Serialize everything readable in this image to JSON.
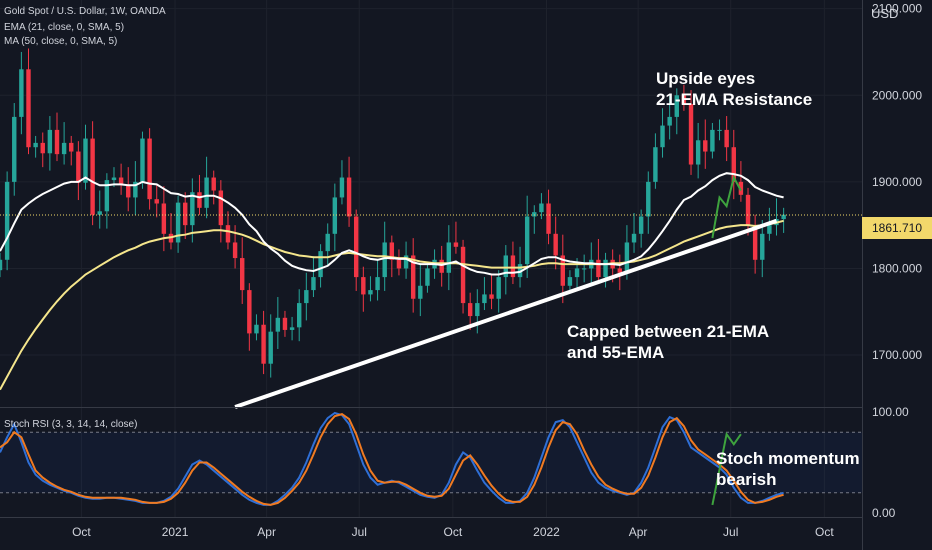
{
  "header": {
    "symbol": "Gold Spot / U.S. Dollar, 1W, OANDA",
    "ema_label": "EMA (21, close, 0, SMA, 5)",
    "ma_label": "MA (50, close, 0, SMA, 5)",
    "stoch_label": "Stoch RSI (3, 3, 14, 14, close)"
  },
  "annotations": {
    "upside_line1": "Upside eyes",
    "upside_line2": "21-EMA Resistance",
    "capped_line1": "Capped between 21-EMA",
    "capped_line2": "and 55-EMA",
    "stoch_line1": "Stoch momentum",
    "stoch_line2": "bearish"
  },
  "price_axis": {
    "unit": "USD",
    "last_price": "1861.710"
  },
  "colors": {
    "background": "#131722",
    "up_candle": "#26a69a",
    "down_candle": "#f23645",
    "ema_line": "#ffffff",
    "ma_line": "#f5e68c",
    "stoch_k": "#2f6fd6",
    "stoch_d": "#f07a21",
    "projection": "#3ea33e",
    "trendline": "#ffffff",
    "last_price_box": "#f2d86b"
  },
  "chart_data": [
    {
      "type": "candlestick",
      "title": "Gold Spot / U.S. Dollar, 1W, OANDA",
      "ylabel": "USD",
      "ylim": [
        1640,
        2110
      ],
      "yticks": [
        1700,
        1800,
        1900,
        2000,
        2100
      ],
      "ytick_labels": [
        "1700.000",
        "1800.000",
        "1900.000",
        "2000.000",
        "2100.000"
      ],
      "x_start": "2020-07-13",
      "x_end": "2022-11-07",
      "xticks": [
        "2020-10-01",
        "2021-01-01",
        "2021-04-01",
        "2021-07-01",
        "2021-10-01",
        "2022-01-01",
        "2022-04-01",
        "2022-07-01",
        "2022-10-01"
      ],
      "xtick_labels": [
        "Oct",
        "2021",
        "Apr",
        "Jul",
        "Oct",
        "2022",
        "Apr",
        "Jul",
        "Oct"
      ],
      "candle_start": "2020-07-13",
      "closes": [
        1810,
        1900,
        1975,
        2030,
        1940,
        1945,
        1933,
        1960,
        1932,
        1945,
        1935,
        1899,
        1950,
        1862,
        1866,
        1902,
        1905,
        1897,
        1882,
        1900,
        1950,
        1880,
        1875,
        1840,
        1830,
        1876,
        1850,
        1888,
        1870,
        1905,
        1890,
        1850,
        1830,
        1812,
        1775,
        1725,
        1735,
        1690,
        1727,
        1743,
        1729,
        1732,
        1760,
        1775,
        1790,
        1820,
        1840,
        1882,
        1905,
        1860,
        1790,
        1770,
        1775,
        1790,
        1830,
        1810,
        1800,
        1815,
        1765,
        1780,
        1800,
        1810,
        1795,
        1830,
        1825,
        1760,
        1745,
        1760,
        1770,
        1765,
        1790,
        1815,
        1790,
        1805,
        1860,
        1865,
        1875,
        1840,
        1815,
        1780,
        1790,
        1800,
        1800,
        1810,
        1790,
        1810,
        1800,
        1795,
        1830,
        1840,
        1860,
        1900,
        1940,
        1965,
        1975,
        2000,
        1990,
        1920,
        1948,
        1935,
        1960,
        1960,
        1940,
        1900,
        1885,
        1850,
        1810,
        1840,
        1850,
        1857,
        1862
      ],
      "ema21": [
        1820,
        1835,
        1852,
        1868,
        1875,
        1881,
        1886,
        1890,
        1894,
        1898,
        1900,
        1900,
        1905,
        1900,
        1896,
        1896,
        1897,
        1897,
        1896,
        1896,
        1900,
        1898,
        1897,
        1892,
        1887,
        1886,
        1883,
        1884,
        1882,
        1884,
        1884,
        1881,
        1876,
        1870,
        1862,
        1851,
        1843,
        1831,
        1823,
        1817,
        1809,
        1803,
        1800,
        1798,
        1797,
        1800,
        1803,
        1810,
        1818,
        1821,
        1818,
        1814,
        1811,
        1810,
        1812,
        1812,
        1811,
        1811,
        1807,
        1805,
        1805,
        1805,
        1804,
        1806,
        1808,
        1803,
        1799,
        1796,
        1795,
        1793,
        1793,
        1795,
        1795,
        1796,
        1801,
        1806,
        1811,
        1813,
        1813,
        1810,
        1808,
        1807,
        1806,
        1806,
        1805,
        1805,
        1805,
        1804,
        1807,
        1810,
        1814,
        1822,
        1832,
        1843,
        1855,
        1868,
        1879,
        1883,
        1890,
        1895,
        1902,
        1907,
        1910,
        1909,
        1907,
        1902,
        1894,
        1890,
        1887,
        1884,
        1882
      ],
      "ma50": [
        1660,
        1675,
        1690,
        1705,
        1718,
        1730,
        1741,
        1752,
        1762,
        1771,
        1779,
        1786,
        1793,
        1798,
        1803,
        1808,
        1813,
        1817,
        1821,
        1824,
        1828,
        1831,
        1833,
        1835,
        1836,
        1838,
        1839,
        1841,
        1842,
        1843,
        1844,
        1844,
        1843,
        1841,
        1839,
        1836,
        1832,
        1828,
        1825,
        1822,
        1819,
        1817,
        1815,
        1814,
        1813,
        1813,
        1813,
        1815,
        1817,
        1818,
        1817,
        1816,
        1815,
        1814,
        1814,
        1813,
        1812,
        1812,
        1810,
        1808,
        1807,
        1806,
        1806,
        1806,
        1806,
        1805,
        1804,
        1803,
        1802,
        1801,
        1801,
        1801,
        1801,
        1801,
        1802,
        1803,
        1805,
        1806,
        1806,
        1805,
        1805,
        1805,
        1805,
        1805,
        1805,
        1805,
        1806,
        1806,
        1807,
        1808,
        1810,
        1812,
        1815,
        1819,
        1823,
        1827,
        1831,
        1834,
        1837,
        1840,
        1843,
        1846,
        1848,
        1849,
        1850,
        1850,
        1849,
        1850,
        1851,
        1853,
        1855
      ],
      "trendline": {
        "from": [
          "2021-03-01",
          1640
        ],
        "to": [
          "2022-08-15",
          1855
        ]
      },
      "projection": [
        [
          "2022-06-13",
          1835
        ],
        [
          "2022-06-20",
          1882
        ],
        [
          "2022-06-27",
          1872
        ],
        [
          "2022-07-04",
          1905
        ],
        [
          "2022-07-11",
          1890
        ]
      ],
      "last_price": 1861.71
    },
    {
      "type": "line",
      "title": "Stoch RSI (3, 3, 14, 14, close)",
      "ylim": [
        -4,
        104
      ],
      "yticks": [
        0,
        100
      ],
      "ytick_labels": [
        "0.00",
        "100.00"
      ],
      "bands": [
        20,
        80
      ],
      "series": [
        {
          "values": [
            60,
            75,
            88,
            70,
            50,
            38,
            32,
            28,
            25,
            22,
            20,
            17,
            15,
            14,
            14,
            15,
            15,
            14,
            13,
            12,
            10,
            10,
            10,
            12,
            16,
            24,
            36,
            48,
            52,
            48,
            42,
            36,
            30,
            24,
            18,
            13,
            10,
            8,
            8,
            12,
            18,
            25,
            35,
            50,
            68,
            84,
            94,
            99,
            97,
            88,
            68,
            48,
            35,
            28,
            30,
            32,
            30,
            26,
            22,
            18,
            16,
            15,
            18,
            30,
            48,
            60,
            55,
            42,
            30,
            22,
            15,
            10,
            10,
            12,
            20,
            35,
            55,
            75,
            90,
            92,
            85,
            70,
            55,
            40,
            30,
            25,
            22,
            20,
            18,
            20,
            30,
            45,
            65,
            85,
            95,
            92,
            80,
            65,
            60,
            55,
            50,
            45,
            38,
            25,
            15,
            10,
            10,
            12,
            15,
            18,
            20
          ]
        },
        {
          "values": [
            65,
            70,
            80,
            75,
            58,
            42,
            35,
            30,
            26,
            23,
            21,
            18,
            16,
            15,
            15,
            15,
            15,
            15,
            14,
            13,
            11,
            10,
            10,
            11,
            14,
            20,
            30,
            42,
            50,
            50,
            45,
            39,
            33,
            27,
            21,
            16,
            12,
            9,
            8,
            10,
            15,
            22,
            30,
            42,
            58,
            75,
            88,
            96,
            98,
            93,
            78,
            58,
            42,
            32,
            30,
            31,
            31,
            28,
            24,
            20,
            17,
            16,
            17,
            24,
            38,
            52,
            57,
            48,
            37,
            27,
            19,
            13,
            11,
            11,
            16,
            28,
            45,
            65,
            82,
            90,
            88,
            78,
            62,
            48,
            36,
            28,
            24,
            21,
            19,
            19,
            25,
            37,
            55,
            75,
            90,
            94,
            86,
            72,
            63,
            58,
            53,
            48,
            42,
            32,
            21,
            13,
            10,
            11,
            13,
            16,
            18
          ]
        }
      ],
      "projection": [
        [
          "2022-06-13",
          8
        ],
        [
          "2022-06-27",
          78
        ],
        [
          "2022-07-04",
          68
        ],
        [
          "2022-07-11",
          78
        ]
      ]
    }
  ]
}
